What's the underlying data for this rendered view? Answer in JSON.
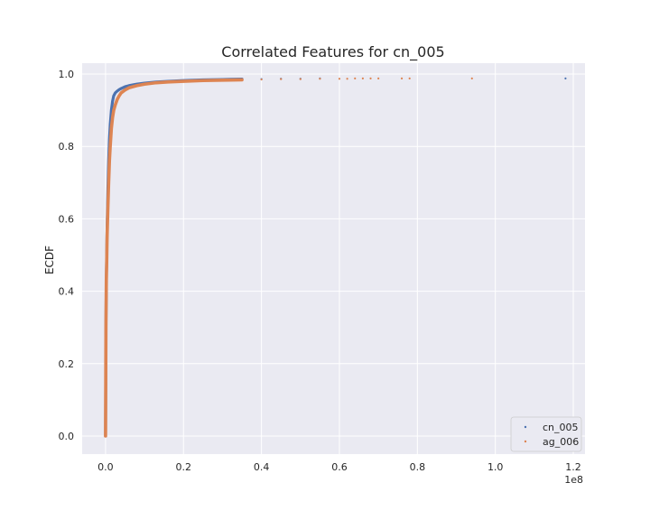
{
  "chart_data": {
    "type": "scatter",
    "title": "Correlated Features for cn_005",
    "xlabel": "",
    "ylabel": "ECDF",
    "x_offset_label": "1e8",
    "xlim": [
      -0.06,
      1.23
    ],
    "ylim": [
      -0.05,
      1.03
    ],
    "x_ticks": [
      0.0,
      0.2,
      0.4,
      0.6,
      0.8,
      1.0,
      1.2
    ],
    "x_tick_labels": [
      "0.0",
      "0.2",
      "0.4",
      "0.6",
      "0.8",
      "1.0",
      "1.2"
    ],
    "y_ticks": [
      0.0,
      0.2,
      0.4,
      0.6,
      0.8,
      1.0
    ],
    "y_tick_labels": [
      "0.0",
      "0.2",
      "0.4",
      "0.6",
      "0.8",
      "1.0"
    ],
    "grid": true,
    "legend_position": "bottom-right",
    "series": [
      {
        "name": "cn_005",
        "color": "#4c72b0",
        "x": [
          0.0,
          0.001,
          0.002,
          0.003,
          0.004,
          0.006,
          0.008,
          0.01,
          0.012,
          0.015,
          0.018,
          0.021,
          0.025,
          0.03,
          0.035,
          0.04,
          0.05,
          0.06,
          0.08,
          0.1,
          0.13,
          0.16,
          0.2,
          0.25,
          0.3,
          0.35,
          0.4,
          0.45,
          0.5,
          0.55,
          1.18
        ],
        "y": [
          0.0,
          0.3,
          0.43,
          0.5,
          0.58,
          0.68,
          0.76,
          0.82,
          0.86,
          0.9,
          0.925,
          0.94,
          0.948,
          0.953,
          0.957,
          0.96,
          0.965,
          0.968,
          0.972,
          0.975,
          0.978,
          0.98,
          0.982,
          0.984,
          0.985,
          0.986,
          0.986,
          0.987,
          0.987,
          0.988,
          0.988
        ]
      },
      {
        "name": "ag_006",
        "color": "#dd8452",
        "x": [
          0.0,
          0.001,
          0.002,
          0.003,
          0.004,
          0.006,
          0.008,
          0.01,
          0.012,
          0.015,
          0.018,
          0.021,
          0.025,
          0.03,
          0.035,
          0.04,
          0.05,
          0.06,
          0.08,
          0.1,
          0.13,
          0.16,
          0.2,
          0.25,
          0.3,
          0.35,
          0.4,
          0.45,
          0.5,
          0.55,
          0.6,
          0.62,
          0.64,
          0.66,
          0.68,
          0.7,
          0.76,
          0.78,
          0.94
        ],
        "y": [
          0.0,
          0.3,
          0.43,
          0.48,
          0.55,
          0.63,
          0.7,
          0.76,
          0.8,
          0.85,
          0.88,
          0.9,
          0.915,
          0.93,
          0.94,
          0.948,
          0.956,
          0.962,
          0.968,
          0.972,
          0.976,
          0.978,
          0.98,
          0.982,
          0.983,
          0.984,
          0.985,
          0.986,
          0.986,
          0.987,
          0.987,
          0.987,
          0.988,
          0.988,
          0.988,
          0.988,
          0.988,
          0.988,
          0.988
        ]
      }
    ]
  }
}
